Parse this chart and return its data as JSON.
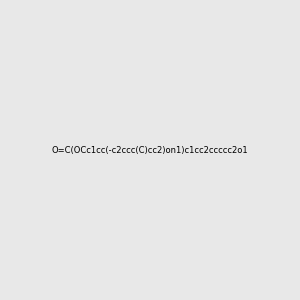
{
  "smiles": "O=C(OCc1cc(-c2ccc(C)cc2)on1)c1cc2ccccc2o1",
  "image_size": 300,
  "background_color": "#e8e8e8"
}
